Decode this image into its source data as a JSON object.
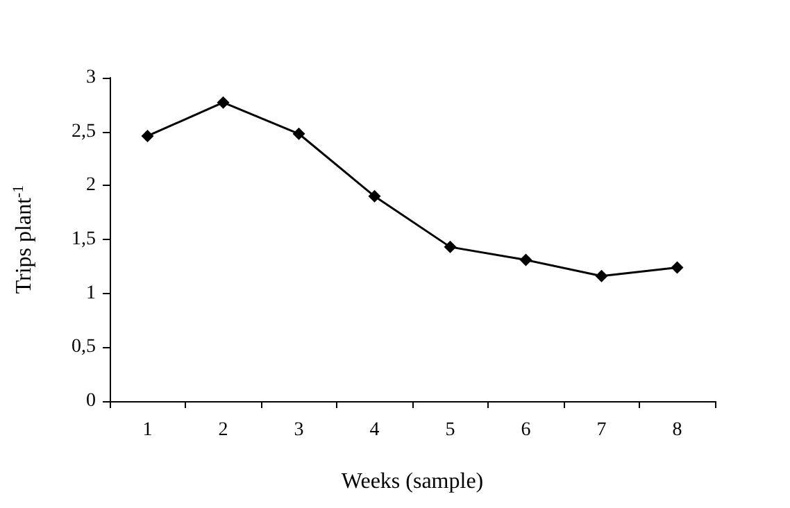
{
  "chart_data": {
    "type": "line",
    "xlabel": "Weeks (sample)",
    "ylabel": "Trips plant$^{-1}$",
    "categories": [
      "1",
      "2",
      "3",
      "4",
      "5",
      "6",
      "7",
      "8"
    ],
    "series": [
      {
        "color": "#000000",
        "values": [
          2.46,
          2.77,
          2.48,
          1.9,
          1.43,
          1.31,
          1.16,
          1.24
        ]
      }
    ],
    "ylim": [
      0,
      3
    ],
    "yticks": [
      0,
      {
        "value": 0.5,
        "label": "0,5"
      },
      1,
      {
        "value": 1.5,
        "label": "1,5"
      },
      2,
      {
        "value": 2.5,
        "label": "2,5"
      },
      3
    ],
    "grid": false,
    "marker": "diamond",
    "line_style": "solid"
  }
}
